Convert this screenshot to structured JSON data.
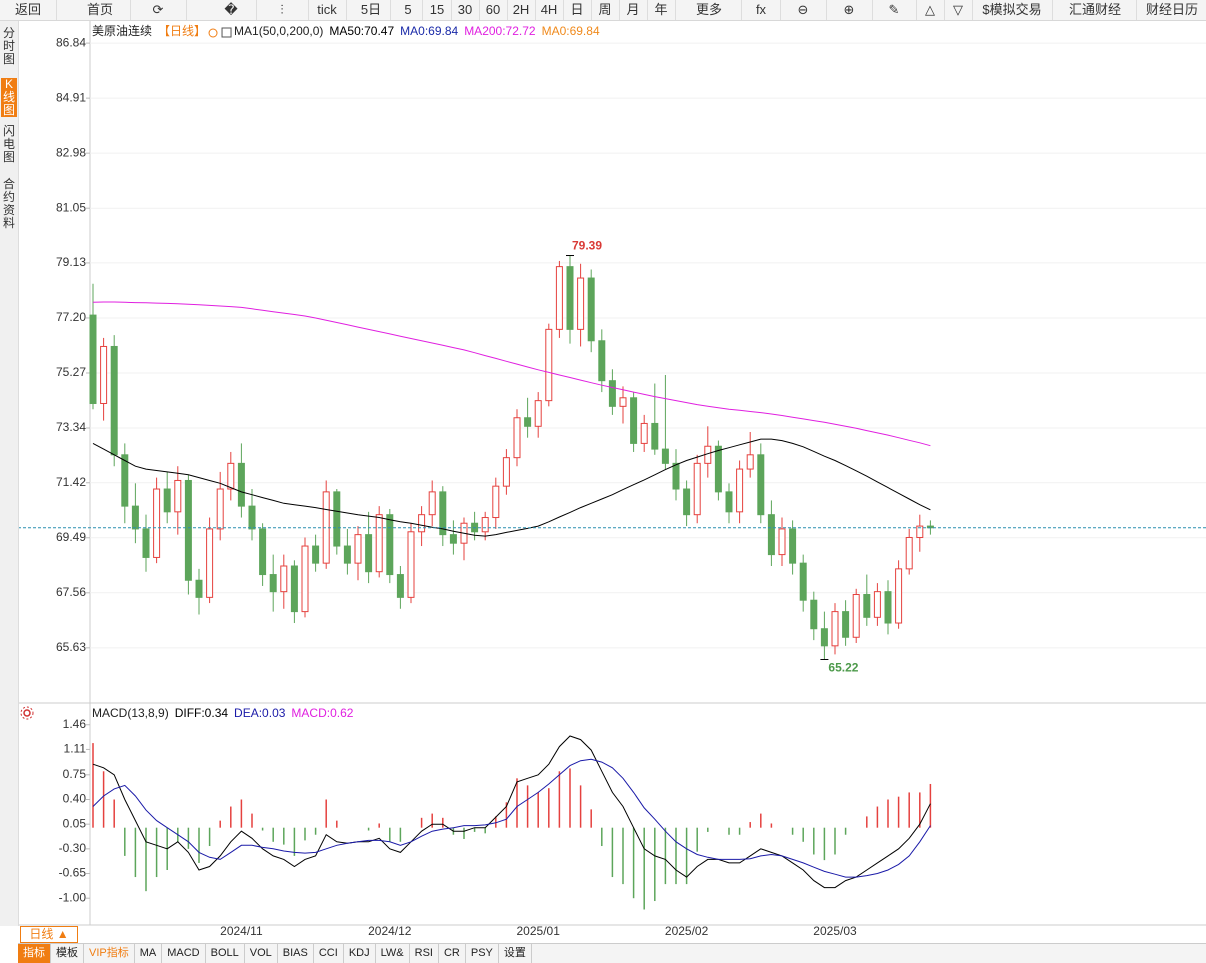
{
  "toolbar": [
    "返回",
    "首页",
    "tick",
    "5日",
    "5",
    "15",
    "30",
    "60",
    "2H",
    "4H",
    "日",
    "周",
    "月",
    "年",
    "更多",
    "$模拟交易",
    "汇通财经",
    "财经日历"
  ],
  "sidebar": [
    "分时图",
    "K线图",
    "闪电图",
    "合约资料"
  ],
  "bottom_bar": {
    "period": "日线 ▲",
    "tabs": [
      "指标",
      "模板",
      "VIP指标",
      "MA",
      "MACD",
      "BOLL",
      "VOL",
      "BIAS",
      "CCI",
      "KDJ",
      "LW&",
      "RSI",
      "CR",
      "PSY",
      "设置"
    ]
  },
  "chart_data": [
    {
      "type": "candlestick",
      "title": "美原油连续",
      "subtitle": "【日线】",
      "indicator": "MA1(50,0,200,0)",
      "categories": [
        null,
        null,
        null,
        null,
        null,
        null,
        null,
        null,
        null,
        null,
        null,
        null,
        null,
        null,
        "2024/11",
        null,
        null,
        null,
        null,
        null,
        null,
        null,
        null,
        null,
        null,
        null,
        null,
        null,
        "2024/12",
        null,
        null,
        null,
        null,
        null,
        null,
        null,
        null,
        null,
        null,
        null,
        null,
        null,
        "2025/01",
        null,
        null,
        null,
        null,
        null,
        null,
        null,
        null,
        null,
        null,
        null,
        null,
        null,
        "2025/02",
        null,
        null,
        null,
        null,
        null,
        null,
        null,
        null,
        null,
        null,
        null,
        null,
        null,
        "2025/03",
        null,
        null,
        null,
        null,
        null,
        null,
        null,
        null,
        null
      ],
      "open": [
        77.3,
        74.2,
        76.2,
        72.4,
        70.6,
        69.8,
        68.8,
        71.2,
        70.4,
        71.5,
        68.0,
        67.4,
        69.8,
        71.2,
        72.1,
        70.6,
        69.8,
        68.2,
        67.6,
        68.5,
        66.9,
        69.2,
        68.6,
        71.1,
        69.2,
        68.6,
        69.6,
        68.3,
        70.3,
        68.2,
        67.4,
        69.7,
        70.3,
        71.1,
        69.6,
        69.3,
        70.0,
        69.7,
        70.2,
        71.3,
        72.3,
        73.7,
        73.4,
        74.3,
        76.8,
        79.0,
        76.8,
        78.6,
        76.4,
        75.0,
        74.1,
        74.4,
        72.8,
        73.5,
        72.6,
        72.1,
        71.2,
        70.3,
        72.1,
        72.7,
        71.1,
        70.4,
        71.9,
        72.4,
        70.3,
        68.9,
        69.8,
        68.6,
        67.3,
        66.3,
        65.7,
        66.9,
        66.0,
        67.5,
        66.7,
        67.6,
        66.5,
        68.4,
        69.5,
        69.9
      ],
      "high": [
        78.4,
        76.5,
        76.6,
        72.8,
        71.4,
        70.3,
        71.6,
        71.8,
        72.0,
        71.7,
        68.4,
        70.2,
        71.8,
        72.5,
        72.8,
        71.2,
        70.0,
        68.9,
        68.9,
        68.7,
        69.5,
        69.6,
        71.5,
        71.2,
        69.8,
        69.9,
        70.4,
        70.6,
        70.5,
        68.5,
        70.0,
        70.6,
        71.5,
        71.3,
        70.1,
        70.2,
        70.4,
        70.4,
        71.6,
        72.6,
        74.0,
        74.4,
        74.6,
        77.0,
        79.2,
        79.39,
        79.1,
        78.9,
        76.8,
        75.4,
        74.8,
        74.6,
        73.8,
        74.9,
        75.2,
        72.6,
        71.5,
        72.4,
        73.4,
        72.9,
        71.4,
        72.2,
        73.2,
        72.8,
        70.8,
        70.2,
        70.1,
        68.9,
        67.6,
        66.9,
        67.2,
        67.3,
        67.7,
        68.2,
        67.9,
        68.0,
        68.7,
        69.8,
        70.3,
        70.1
      ],
      "low": [
        74.0,
        73.6,
        72.0,
        70.0,
        69.3,
        68.3,
        68.6,
        70.0,
        69.6,
        67.5,
        66.8,
        67.2,
        69.4,
        70.8,
        70.2,
        69.4,
        67.8,
        66.9,
        67.0,
        66.5,
        66.7,
        68.3,
        68.4,
        68.9,
        68.2,
        68.0,
        67.9,
        68.1,
        67.9,
        67.0,
        67.2,
        69.2,
        69.9,
        69.2,
        68.9,
        68.7,
        69.4,
        69.4,
        69.8,
        71.0,
        72.0,
        73.0,
        73.0,
        74.1,
        76.5,
        76.3,
        76.2,
        76.0,
        74.6,
        73.8,
        73.5,
        72.5,
        72.5,
        72.4,
        71.9,
        70.8,
        69.9,
        70.0,
        71.6,
        70.8,
        70.0,
        70.0,
        71.6,
        70.0,
        68.5,
        68.5,
        68.2,
        66.9,
        65.9,
        65.22,
        65.4,
        65.7,
        65.8,
        66.4,
        66.4,
        66.1,
        66.3,
        68.2,
        69.0,
        69.6
      ],
      "close": [
        74.2,
        76.2,
        72.4,
        70.6,
        69.8,
        68.8,
        71.2,
        70.4,
        71.5,
        68.0,
        67.4,
        69.8,
        71.2,
        72.1,
        70.6,
        69.8,
        68.2,
        67.6,
        68.5,
        66.9,
        69.2,
        68.6,
        71.1,
        69.2,
        68.6,
        69.6,
        68.3,
        70.3,
        68.2,
        67.4,
        69.7,
        70.3,
        71.1,
        69.6,
        69.3,
        70.0,
        69.7,
        70.2,
        71.3,
        72.3,
        73.7,
        73.4,
        74.3,
        76.8,
        79.0,
        76.8,
        78.6,
        76.4,
        75.0,
        74.1,
        74.4,
        72.8,
        73.5,
        72.6,
        72.1,
        71.2,
        70.3,
        72.1,
        72.7,
        71.1,
        70.4,
        71.9,
        72.4,
        70.3,
        68.9,
        69.8,
        68.6,
        67.3,
        66.3,
        65.7,
        66.9,
        66.0,
        67.5,
        66.7,
        67.6,
        66.5,
        68.4,
        69.5,
        69.9,
        69.84
      ],
      "up_color": "#e5413e",
      "down_color": "#5da55b",
      "series": [
        {
          "name": "MA50:70.47",
          "color": "#000000",
          "values": [
            72.8,
            72.6,
            72.4,
            72.2,
            72.0,
            71.9,
            71.85,
            71.8,
            71.75,
            71.7,
            71.6,
            71.5,
            71.4,
            71.25,
            71.1,
            71.0,
            70.9,
            70.8,
            70.7,
            70.65,
            70.6,
            70.55,
            70.48,
            70.42,
            70.36,
            70.3,
            70.25,
            70.2,
            70.12,
            70.05,
            70.0,
            69.93,
            69.86,
            69.8,
            69.72,
            69.65,
            69.58,
            69.55,
            69.6,
            69.68,
            69.75,
            69.82,
            69.9,
            70.05,
            70.22,
            70.38,
            70.55,
            70.7,
            70.85,
            71.0,
            71.18,
            71.35,
            71.52,
            71.7,
            71.88,
            72.05,
            72.2,
            72.32,
            72.44,
            72.55,
            72.65,
            72.75,
            72.85,
            72.95,
            72.95,
            72.9,
            72.8,
            72.68,
            72.52,
            72.35,
            72.2,
            72.02,
            71.84,
            71.65,
            71.45,
            71.25,
            71.05,
            70.85,
            70.65,
            70.47
          ]
        },
        {
          "name": "MA0:69.84",
          "color": "#1a2aa8"
        },
        {
          "name": "MA200:72.72",
          "color": "#e020e0",
          "values": [
            77.75,
            77.76,
            77.76,
            77.75,
            77.74,
            77.73,
            77.72,
            77.71,
            77.7,
            77.68,
            77.66,
            77.64,
            77.62,
            77.6,
            77.57,
            77.52,
            77.47,
            77.42,
            77.37,
            77.32,
            77.27,
            77.2,
            77.12,
            77.04,
            76.96,
            76.88,
            76.8,
            76.72,
            76.64,
            76.56,
            76.48,
            76.4,
            76.32,
            76.24,
            76.16,
            76.08,
            75.98,
            75.88,
            75.78,
            75.68,
            75.58,
            75.48,
            75.38,
            75.29,
            75.2,
            75.11,
            75.02,
            74.93,
            74.84,
            74.76,
            74.68,
            74.6,
            74.52,
            74.44,
            74.37,
            74.3,
            74.23,
            74.16,
            74.1,
            74.05,
            74.0,
            73.96,
            73.92,
            73.88,
            73.83,
            73.78,
            73.72,
            73.66,
            73.6,
            73.54,
            73.47,
            73.4,
            73.33,
            73.25,
            73.17,
            73.09,
            73.0,
            72.91,
            72.82,
            72.72
          ]
        },
        {
          "name": "MA0:69.84",
          "color": "#f08a1c"
        }
      ],
      "last_price": 69.84,
      "last_price_color": "#2a8fb0",
      "ylim": [
        63.8,
        87.3
      ],
      "yticks": [
        86.84,
        84.91,
        82.98,
        81.05,
        79.13,
        {
          "value": 77.2,
          "label": "77.20"
        },
        75.27,
        73.34,
        71.42,
        69.49,
        67.56,
        65.63
      ],
      "grid": true
    },
    {
      "type": "macd",
      "title": "MACD(13,8,9)",
      "series": [
        {
          "name": "DIFF:0.34",
          "color": "#000000",
          "values": [
            0.9,
            0.85,
            0.75,
            0.4,
            0.1,
            -0.2,
            -0.25,
            -0.3,
            -0.2,
            -0.35,
            -0.6,
            -0.55,
            -0.4,
            -0.2,
            -0.05,
            -0.15,
            -0.3,
            -0.4,
            -0.45,
            -0.55,
            -0.45,
            -0.4,
            -0.1,
            -0.2,
            -0.22,
            -0.2,
            -0.2,
            -0.15,
            -0.3,
            -0.35,
            -0.2,
            -0.05,
            0.05,
            0.05,
            -0.05,
            -0.05,
            0.0,
            0.0,
            0.15,
            0.3,
            0.65,
            0.7,
            0.75,
            0.9,
            1.15,
            1.3,
            1.25,
            1.1,
            0.8,
            0.5,
            0.3,
            0.0,
            -0.3,
            -0.4,
            -0.45,
            -0.6,
            -0.7,
            -0.55,
            -0.45,
            -0.45,
            -0.5,
            -0.5,
            -0.4,
            -0.3,
            -0.35,
            -0.4,
            -0.5,
            -0.6,
            -0.75,
            -0.85,
            -0.85,
            -0.75,
            -0.7,
            -0.6,
            -0.5,
            -0.4,
            -0.3,
            -0.15,
            0.05,
            0.34
          ]
        },
        {
          "name": "DEA:0.03",
          "color": "#1a1aa8",
          "values": [
            0.3,
            0.45,
            0.55,
            0.6,
            0.45,
            0.25,
            0.1,
            0.0,
            -0.1,
            -0.2,
            -0.35,
            -0.42,
            -0.45,
            -0.35,
            -0.25,
            -0.25,
            -0.28,
            -0.3,
            -0.33,
            -0.35,
            -0.36,
            -0.35,
            -0.3,
            -0.25,
            -0.22,
            -0.2,
            -0.18,
            -0.18,
            -0.2,
            -0.25,
            -0.2,
            -0.12,
            -0.05,
            -0.02,
            0.0,
            0.03,
            0.03,
            0.04,
            0.07,
            0.12,
            0.3,
            0.4,
            0.5,
            0.62,
            0.75,
            0.88,
            0.95,
            0.97,
            0.93,
            0.85,
            0.7,
            0.5,
            0.28,
            0.12,
            -0.05,
            -0.2,
            -0.3,
            -0.38,
            -0.42,
            -0.45,
            -0.45,
            -0.45,
            -0.44,
            -0.4,
            -0.38,
            -0.4,
            -0.45,
            -0.5,
            -0.56,
            -0.62,
            -0.66,
            -0.7,
            -0.7,
            -0.68,
            -0.65,
            -0.6,
            -0.52,
            -0.4,
            -0.2,
            0.03
          ]
        },
        {
          "name": "MACD:0.62",
          "color": "#e020e0",
          "style": "histogram",
          "up_color": "#e5413e",
          "down_color": "#5da55b",
          "values": [
            1.2,
            0.8,
            0.4,
            -0.4,
            -0.7,
            -0.9,
            -0.7,
            -0.6,
            -0.2,
            -0.3,
            -0.5,
            -0.26,
            0.1,
            0.3,
            0.4,
            0.2,
            -0.04,
            -0.2,
            -0.24,
            -0.4,
            -0.18,
            -0.1,
            0.4,
            0.1,
            0.0,
            0.0,
            -0.04,
            0.06,
            -0.2,
            -0.2,
            0.0,
            0.14,
            0.2,
            0.14,
            -0.1,
            -0.16,
            -0.06,
            -0.08,
            0.16,
            0.36,
            0.7,
            0.6,
            0.5,
            0.56,
            0.8,
            0.84,
            0.6,
            0.26,
            -0.26,
            -0.7,
            -0.8,
            -1.0,
            -1.16,
            -1.04,
            -0.8,
            -0.8,
            -0.8,
            -0.34,
            -0.06,
            0.0,
            -0.1,
            -0.1,
            0.08,
            0.2,
            0.06,
            0.0,
            -0.1,
            -0.2,
            -0.38,
            -0.46,
            -0.38,
            -0.1,
            0.0,
            0.16,
            0.3,
            0.4,
            0.44,
            0.5,
            0.5,
            0.62
          ]
        }
      ],
      "ylim": [
        -1.38,
        1.74
      ],
      "yticks": [
        1.46,
        1.11,
        0.75,
        {
          "value": 0.4,
          "label": "0.40"
        },
        0.05,
        {
          "value": -0.3,
          "label": "-0.30"
        },
        -0.65,
        {
          "value": -1.0,
          "label": "-1.00"
        }
      ],
      "grid": false
    }
  ]
}
